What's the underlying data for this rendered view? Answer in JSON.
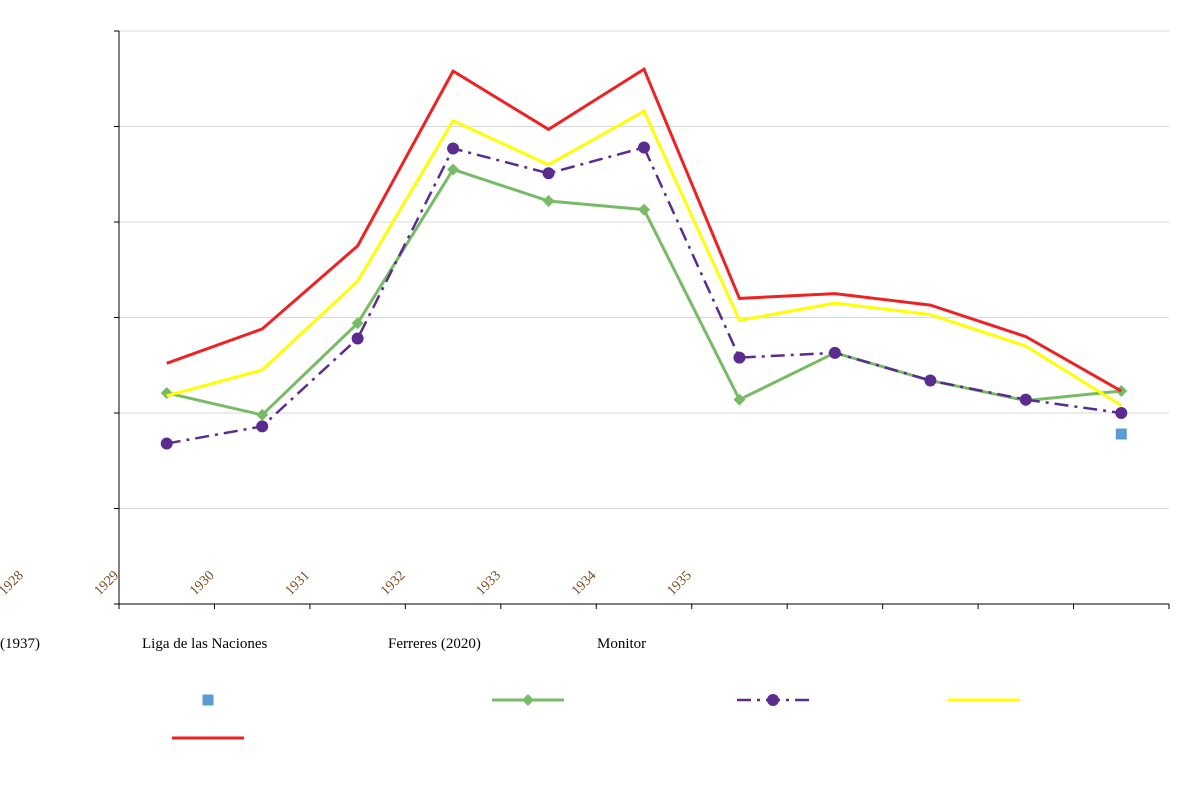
{
  "chart_data": {
    "type": "line",
    "x_positions": 11,
    "xtick_labels": [
      "1928",
      "1929",
      "1930",
      "1931",
      "1932",
      "1933",
      "1934",
      "1935"
    ],
    "ylim": [
      0,
      6
    ],
    "grid": true,
    "legend_labels": [
      "(1937)",
      "Liga de las Naciones",
      "Ferreres (2020)",
      "Monitor"
    ],
    "legend_placement": "bottom",
    "series": [
      {
        "color": "#5b9bd5",
        "style": "marker-square",
        "values": [
          null,
          null,
          null,
          null,
          null,
          null,
          null,
          null,
          null,
          null,
          1.78
        ]
      },
      {
        "color": "#77bb66",
        "style": "solid-diamond",
        "values": [
          2.21,
          1.98,
          2.94,
          4.55,
          4.22,
          4.13,
          2.14,
          2.63,
          2.34,
          2.13,
          2.23
        ]
      },
      {
        "color": "#5b2c8f",
        "style": "dashdot-circle",
        "values": [
          1.68,
          1.86,
          2.78,
          4.77,
          4.51,
          4.78,
          2.58,
          2.63,
          2.34,
          2.14,
          2.0
        ]
      },
      {
        "color": "#ffff00",
        "style": "solid",
        "values": [
          2.18,
          2.45,
          3.38,
          5.06,
          4.6,
          5.16,
          2.97,
          3.15,
          3.03,
          2.7,
          2.08
        ]
      },
      {
        "color": "#ee2222",
        "style": "solid",
        "values": [
          2.52,
          2.88,
          3.75,
          5.58,
          4.97,
          5.6,
          3.2,
          3.25,
          3.13,
          2.8,
          2.23
        ]
      }
    ]
  }
}
